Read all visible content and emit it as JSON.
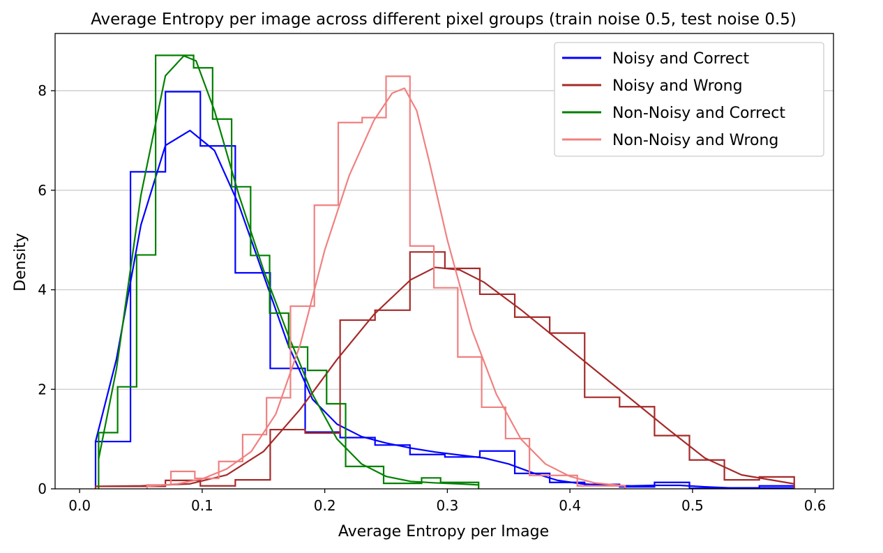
{
  "chart_data": {
    "type": "histogram",
    "title": "Average Entropy per image across different pixel groups (train noise 0.5, test noise 0.5)",
    "xlabel": "Average Entropy per Image",
    "ylabel": "Density",
    "xlim": [
      -0.02,
      0.615
    ],
    "ylim": [
      0,
      9.15
    ],
    "x_ticks": [
      "0.0",
      "0.1",
      "0.2",
      "0.3",
      "0.4",
      "0.5",
      "0.6"
    ],
    "y_ticks": [
      "0",
      "2",
      "4",
      "6",
      "8"
    ],
    "grid": "horizontal",
    "legend_position": "top-right",
    "series": [
      {
        "name": "Noisy and Correct",
        "color": "#0000ff",
        "bin_edges": [
          0.013,
          0.0415,
          0.07,
          0.0985,
          0.127,
          0.1555,
          0.184,
          0.2125,
          0.241,
          0.2695,
          0.298,
          0.3265,
          0.355,
          0.3835,
          0.412,
          0.4405,
          0.469,
          0.4975,
          0.526,
          0.5545,
          0.583
        ],
        "density": [
          0.95,
          6.37,
          7.98,
          6.89,
          4.34,
          2.42,
          1.14,
          1.03,
          0.88,
          0.69,
          0.64,
          0.76,
          0.31,
          0.13,
          0.09,
          0.04,
          0.13,
          0.01,
          0.01,
          0.06
        ],
        "kde": {
          "x": [
            0.013,
            0.03,
            0.05,
            0.07,
            0.09,
            0.11,
            0.13,
            0.15,
            0.17,
            0.19,
            0.21,
            0.23,
            0.25,
            0.27,
            0.29,
            0.31,
            0.33,
            0.35,
            0.37,
            0.39,
            0.41,
            0.43,
            0.45,
            0.47,
            0.49,
            0.51,
            0.53,
            0.55,
            0.583
          ],
          "y": [
            0.95,
            2.6,
            5.3,
            6.9,
            7.2,
            6.8,
            5.7,
            4.3,
            2.9,
            1.8,
            1.3,
            1.05,
            0.92,
            0.82,
            0.74,
            0.68,
            0.62,
            0.5,
            0.32,
            0.17,
            0.1,
            0.07,
            0.06,
            0.07,
            0.07,
            0.04,
            0.02,
            0.02,
            0.02
          ]
        }
      },
      {
        "name": "Noisy and Wrong",
        "color": "#a52a2a",
        "bin_edges": [
          0.013,
          0.0415,
          0.07,
          0.0985,
          0.127,
          0.1555,
          0.184,
          0.2125,
          0.241,
          0.2695,
          0.298,
          0.3265,
          0.355,
          0.3835,
          0.412,
          0.4405,
          0.469,
          0.4975,
          0.526,
          0.5545,
          0.583
        ],
        "density": [
          0.05,
          0.05,
          0.17,
          0.06,
          0.18,
          1.19,
          1.12,
          3.39,
          3.59,
          4.76,
          4.43,
          3.91,
          3.45,
          3.13,
          1.84,
          1.65,
          1.07,
          0.58,
          0.18,
          0.24
        ],
        "kde": {
          "x": [
            0.013,
            0.05,
            0.09,
            0.12,
            0.15,
            0.18,
            0.21,
            0.24,
            0.27,
            0.29,
            0.31,
            0.33,
            0.36,
            0.39,
            0.42,
            0.45,
            0.48,
            0.51,
            0.54,
            0.583
          ],
          "y": [
            0.05,
            0.06,
            0.1,
            0.28,
            0.75,
            1.6,
            2.6,
            3.5,
            4.2,
            4.45,
            4.4,
            4.15,
            3.6,
            3.0,
            2.4,
            1.8,
            1.2,
            0.62,
            0.28,
            0.1
          ]
        }
      },
      {
        "name": "Non-Noisy and Correct",
        "color": "#008000",
        "bin_edges": [
          0.0155,
          0.031,
          0.0465,
          0.062,
          0.0775,
          0.093,
          0.1085,
          0.124,
          0.1395,
          0.155,
          0.1705,
          0.186,
          0.2015,
          0.217,
          0.2325,
          0.248,
          0.2635,
          0.279,
          0.2945,
          0.31,
          0.3255
        ],
        "density": [
          1.13,
          2.05,
          4.7,
          8.71,
          8.71,
          8.46,
          7.43,
          6.07,
          4.69,
          3.53,
          2.85,
          2.38,
          1.71,
          0.45,
          0.45,
          0.11,
          0.11,
          0.22,
          0.13,
          0.13
        ],
        "kde": {
          "x": [
            0.0155,
            0.03,
            0.05,
            0.07,
            0.085,
            0.095,
            0.11,
            0.13,
            0.15,
            0.17,
            0.19,
            0.21,
            0.23,
            0.25,
            0.27,
            0.29,
            0.31,
            0.325
          ],
          "y": [
            0.6,
            2.4,
            5.9,
            8.3,
            8.7,
            8.6,
            7.6,
            5.9,
            4.4,
            3.1,
            1.9,
            1.0,
            0.5,
            0.25,
            0.15,
            0.12,
            0.1,
            0.08
          ]
        }
      },
      {
        "name": "Non-Noisy and Wrong",
        "color": "#f08080",
        "bin_edges": [
          0.055,
          0.0745,
          0.094,
          0.1135,
          0.133,
          0.1525,
          0.172,
          0.1915,
          0.211,
          0.2305,
          0.25,
          0.2695,
          0.289,
          0.3085,
          0.328,
          0.3475,
          0.367,
          0.3865,
          0.406,
          0.4255,
          0.445
        ],
        "density": [
          0.08,
          0.35,
          0.21,
          0.55,
          1.09,
          1.83,
          3.67,
          5.7,
          7.36,
          7.46,
          8.29,
          4.88,
          4.04,
          2.65,
          1.64,
          1.01,
          0.27,
          0.27,
          0.06,
          0.06
        ],
        "kde": {
          "x": [
            0.055,
            0.08,
            0.1,
            0.12,
            0.14,
            0.16,
            0.18,
            0.2,
            0.22,
            0.24,
            0.255,
            0.265,
            0.275,
            0.285,
            0.3,
            0.32,
            0.34,
            0.36,
            0.38,
            0.4,
            0.42,
            0.445
          ],
          "y": [
            0.05,
            0.1,
            0.2,
            0.4,
            0.75,
            1.5,
            2.9,
            4.8,
            6.3,
            7.4,
            7.95,
            8.05,
            7.6,
            6.6,
            5.0,
            3.2,
            1.9,
            1.0,
            0.5,
            0.25,
            0.12,
            0.06
          ]
        }
      }
    ]
  }
}
